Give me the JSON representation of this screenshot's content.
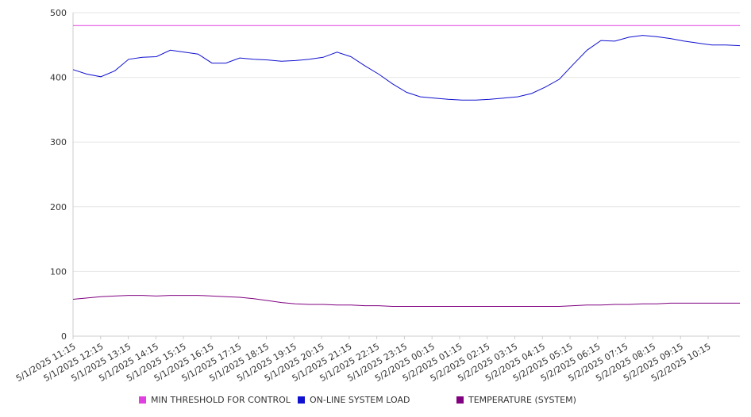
{
  "chart_data": {
    "type": "line",
    "title": "",
    "xlabel": "",
    "ylabel": "",
    "ylim": [
      0,
      500
    ],
    "yticks": [
      0,
      100,
      200,
      300,
      400,
      500
    ],
    "grid": "horizontal",
    "legend_position": "bottom",
    "x_labels": [
      "5/1/2025 11:15",
      "5/1/2025 12:15",
      "5/1/2025 13:15",
      "5/1/2025 14:15",
      "5/1/2025 15:15",
      "5/1/2025 16:15",
      "5/1/2025 17:15",
      "5/1/2025 18:15",
      "5/1/2025 19:15",
      "5/1/2025 20:15",
      "5/1/2025 21:15",
      "5/1/2025 22:15",
      "5/1/2025 23:15",
      "5/2/2025 00:15",
      "5/2/2025 01:15",
      "5/2/2025 02:15",
      "5/2/2025 03:15",
      "5/2/2025 04:15",
      "5/2/2025 05:15",
      "5/2/2025 06:15",
      "5/2/2025 07:15",
      "5/2/2025 08:15",
      "5/2/2025 09:15",
      "5/2/2025 10:15"
    ],
    "x": [
      "5/1/2025 11:15",
      "5/1/2025 11:45",
      "5/1/2025 12:15",
      "5/1/2025 12:45",
      "5/1/2025 13:15",
      "5/1/2025 13:45",
      "5/1/2025 14:15",
      "5/1/2025 14:45",
      "5/1/2025 15:15",
      "5/1/2025 15:45",
      "5/1/2025 16:15",
      "5/1/2025 16:45",
      "5/1/2025 17:15",
      "5/1/2025 17:45",
      "5/1/2025 18:15",
      "5/1/2025 18:45",
      "5/1/2025 19:15",
      "5/1/2025 19:45",
      "5/1/2025 20:15",
      "5/1/2025 20:45",
      "5/1/2025 21:15",
      "5/1/2025 21:45",
      "5/1/2025 22:15",
      "5/1/2025 22:45",
      "5/1/2025 23:15",
      "5/1/2025 23:45",
      "5/2/2025 00:15",
      "5/2/2025 00:45",
      "5/2/2025 01:15",
      "5/2/2025 01:45",
      "5/2/2025 02:15",
      "5/2/2025 02:45",
      "5/2/2025 03:15",
      "5/2/2025 03:45",
      "5/2/2025 04:15",
      "5/2/2025 04:45",
      "5/2/2025 05:15",
      "5/2/2025 05:45",
      "5/2/2025 06:15",
      "5/2/2025 06:45",
      "5/2/2025 07:15",
      "5/2/2025 07:45",
      "5/2/2025 08:15",
      "5/2/2025 08:45",
      "5/2/2025 09:15",
      "5/2/2025 09:45",
      "5/2/2025 10:15",
      "5/2/2025 10:45",
      "5/2/2025 11:00"
    ],
    "series": [
      {
        "name": "MIN THRESHOLD FOR CONTROL",
        "color": "#e040e0",
        "values": [
          480,
          480,
          480,
          480,
          480,
          480,
          480,
          480,
          480,
          480,
          480,
          480,
          480,
          480,
          480,
          480,
          480,
          480,
          480,
          480,
          480,
          480,
          480,
          480,
          480,
          480,
          480,
          480,
          480,
          480,
          480,
          480,
          480,
          480,
          480,
          480,
          480,
          480,
          480,
          480,
          480,
          480,
          480,
          480,
          480,
          480,
          480,
          480,
          480
        ]
      },
      {
        "name": "ON-LINE SYSTEM LOAD",
        "color": "#1010d0",
        "values": [
          412,
          405,
          401,
          410,
          428,
          431,
          432,
          442,
          439,
          436,
          422,
          422,
          430,
          428,
          427,
          425,
          426,
          428,
          431,
          439,
          432,
          418,
          405,
          390,
          377,
          370,
          368,
          366,
          365,
          365,
          366,
          368,
          370,
          375,
          385,
          397,
          420,
          442,
          457,
          456,
          462,
          465,
          463,
          460,
          456,
          453,
          450,
          450,
          449
        ]
      },
      {
        "name": "TEMPERATURE (SYSTEM)",
        "color": "#800080",
        "values": [
          57,
          59,
          61,
          62,
          63,
          63,
          62,
          63,
          63,
          63,
          62,
          61,
          60,
          58,
          55,
          52,
          50,
          49,
          49,
          48,
          48,
          47,
          47,
          46,
          46,
          46,
          46,
          46,
          46,
          46,
          46,
          46,
          46,
          46,
          46,
          46,
          47,
          48,
          48,
          49,
          49,
          50,
          50,
          51,
          51,
          51,
          51,
          51,
          51
        ]
      }
    ]
  }
}
